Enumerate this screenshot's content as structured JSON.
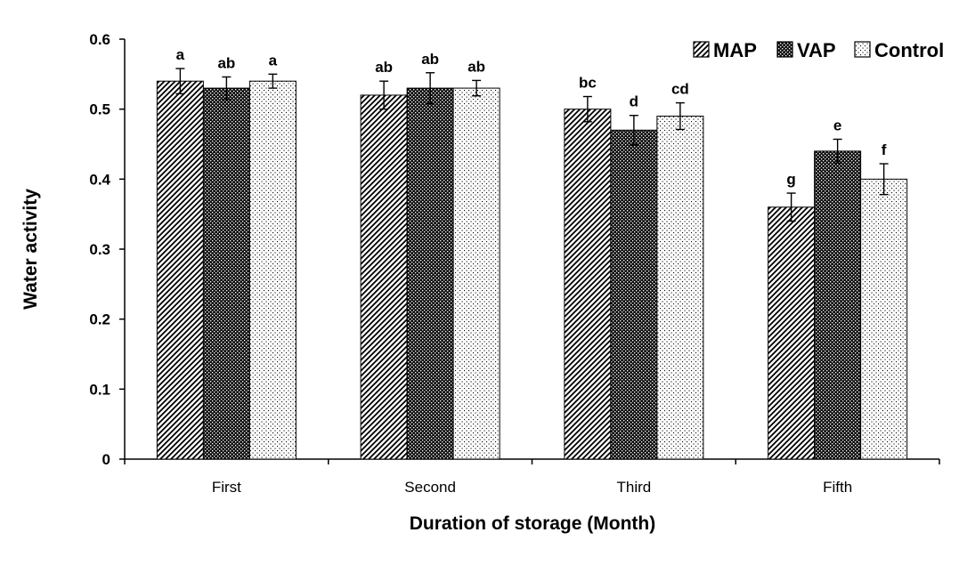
{
  "chart_data": {
    "type": "bar",
    "title": "",
    "xlabel": "Duration of  storage (Month)",
    "ylabel": "Water activity",
    "categories": [
      "First",
      "Second",
      "Third",
      "Fifth"
    ],
    "ylim": [
      0,
      0.6
    ],
    "yticks": [
      "0",
      "0.1",
      "0.2",
      "0.3",
      "0.4",
      "0.5",
      "0.6"
    ],
    "legend_position": "top-right",
    "grid": false,
    "series": [
      {
        "name": "MAP",
        "pattern": "diagonal-hatch",
        "values": [
          0.54,
          0.52,
          0.5,
          0.36
        ],
        "errors": [
          0.018,
          0.02,
          0.018,
          0.02
        ],
        "labels": [
          "a",
          "ab",
          "bc",
          "g"
        ]
      },
      {
        "name": "VAP",
        "pattern": "dark-checker",
        "values": [
          0.53,
          0.53,
          0.47,
          0.44
        ],
        "errors": [
          0.016,
          0.022,
          0.021,
          0.017
        ],
        "labels": [
          "ab",
          "ab",
          "d",
          "e"
        ]
      },
      {
        "name": "Control",
        "pattern": "light-dots",
        "values": [
          0.54,
          0.53,
          0.49,
          0.4
        ],
        "errors": [
          0.01,
          0.011,
          0.019,
          0.022
        ],
        "labels": [
          "a",
          "ab",
          "cd",
          "f"
        ]
      }
    ],
    "colors": {
      "outline": "#000000",
      "background": "#ffffff"
    }
  }
}
